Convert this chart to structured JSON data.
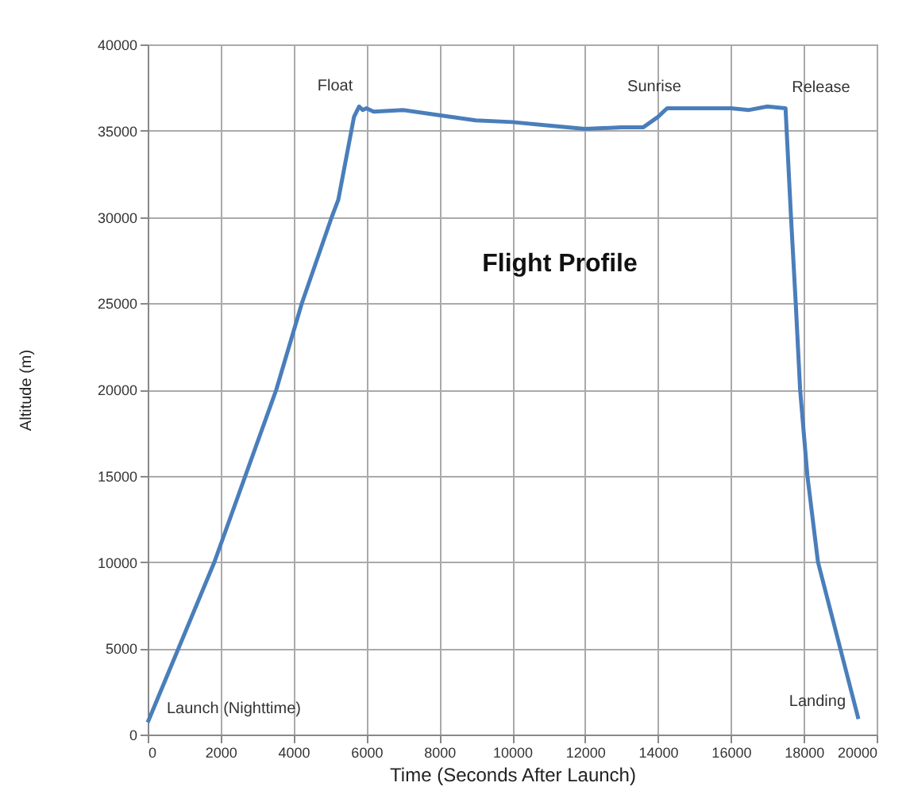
{
  "chart_data": {
    "type": "line",
    "title": "Flight Profile",
    "xlabel": "Time (Seconds After Launch)",
    "ylabel": "Altitude (m)",
    "x": [
      0,
      1830,
      3530,
      4230,
      5050,
      5230,
      5660,
      5800,
      5900,
      6000,
      6200,
      7000,
      8000,
      9000,
      10000,
      11000,
      12000,
      13000,
      13600,
      14000,
      14250,
      15000,
      16000,
      16500,
      17000,
      17500,
      17650,
      17780,
      17900,
      18100,
      18390,
      19000,
      19500
    ],
    "series": [
      {
        "color": "#4a7ebb",
        "values": [
          700,
          10000,
          20000,
          25000,
          30000,
          31000,
          35800,
          36400,
          36200,
          36300,
          36100,
          36200,
          35900,
          35600,
          35500,
          35300,
          35100,
          35200,
          35200,
          35800,
          36300,
          36300,
          36300,
          36200,
          36400,
          36300,
          30000,
          25000,
          20000,
          15000,
          10000,
          5000,
          900
        ]
      }
    ],
    "xlim": [
      0,
      20000
    ],
    "xticks": [
      0,
      2000,
      4000,
      6000,
      8000,
      10000,
      12000,
      14000,
      16000,
      18000,
      20000
    ],
    "ylim": [
      0,
      40000
    ],
    "yticks": [
      0,
      5000,
      10000,
      15000,
      20000,
      25000,
      30000,
      35000,
      40000
    ],
    "grid": true,
    "marker": "none",
    "line_style": "solid",
    "annotations": [
      {
        "text": "Launch (Nighttime)",
        "x": 0,
        "y": 700
      },
      {
        "text": "Float",
        "x": 5800,
        "y": 36400
      },
      {
        "text": "Sunrise",
        "x": 13900,
        "y": 35800
      },
      {
        "text": "Release",
        "x": 17500,
        "y": 36300
      },
      {
        "text": "Landing",
        "x": 19500,
        "y": 900
      }
    ]
  }
}
